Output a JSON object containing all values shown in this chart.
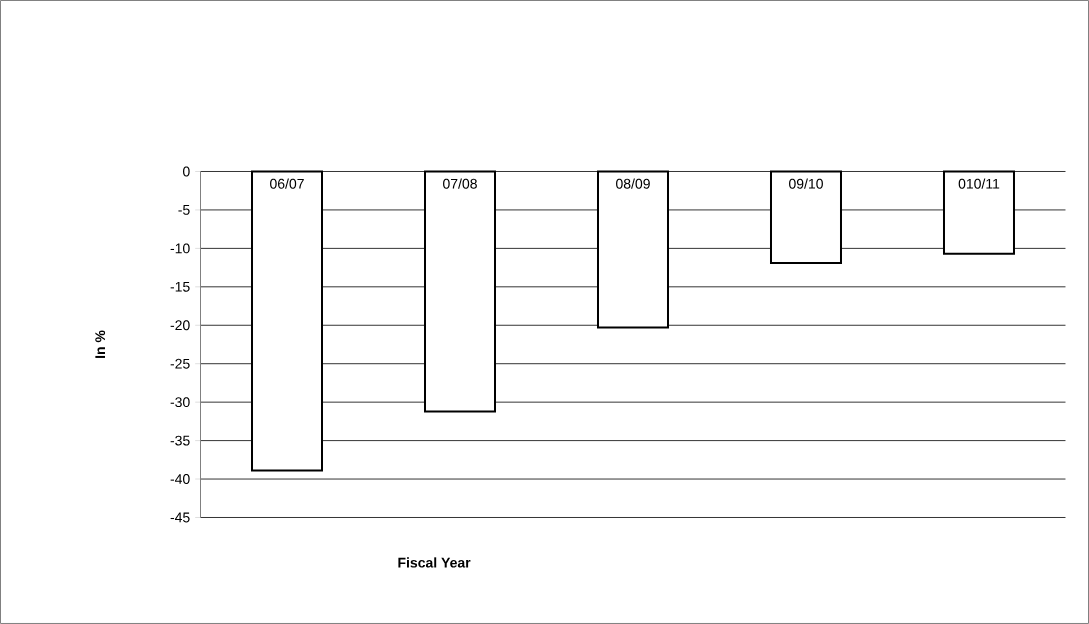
{
  "chart_data": {
    "type": "bar",
    "xlabel": "Fiscal Year",
    "ylabel": "In %",
    "categories": [
      "06/07",
      "07/08",
      "08/09",
      "09/10",
      "010/11"
    ],
    "values": [
      -38.9,
      -31.2,
      -20.3,
      -11.9,
      -10.7
    ],
    "color": "#000000",
    "ylim": [
      -45,
      0
    ],
    "yticks": [
      0,
      -5,
      -10,
      -15,
      -20,
      -25,
      -30,
      -35,
      -40,
      -45
    ],
    "grid": "y"
  }
}
